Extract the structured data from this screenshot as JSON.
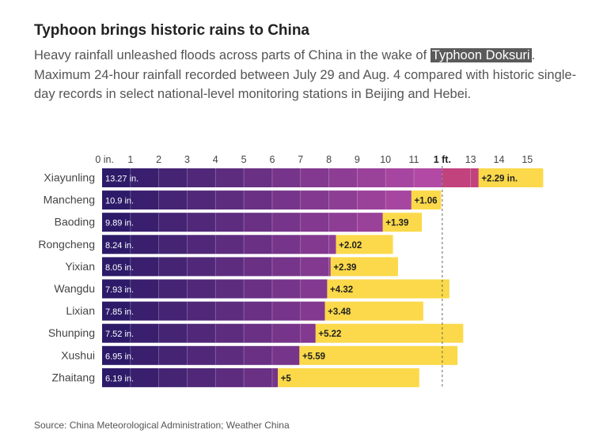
{
  "header": {
    "title": "Typhoon brings historic rains to China",
    "subtitle_before": "Heavy rainfall unleashed floods across parts of China in the wake of ",
    "subtitle_highlight": "Typhoon Doksuri",
    "subtitle_after": ". Maximum 24-hour rainfall recorded between July 29 and Aug. 4 compared with historic single-day records in select national-level monitoring stations in Beijing and Hebei."
  },
  "source": "Source: China Meteorological Administration; Weather China",
  "colors": {
    "purple_dark": "#2d1b69",
    "purple_light": "#b24aa5",
    "magenta": "#c2427e",
    "yellow": "#fbd94a",
    "reference_line": "#666666"
  },
  "chart_data": {
    "type": "bar",
    "orientation": "horizontal",
    "stacked": true,
    "xlim": [
      0,
      15
    ],
    "x_ticks": [
      {
        "value": 0,
        "label": "0 in."
      },
      {
        "value": 1,
        "label": "1"
      },
      {
        "value": 2,
        "label": "2"
      },
      {
        "value": 3,
        "label": "3"
      },
      {
        "value": 4,
        "label": "4"
      },
      {
        "value": 5,
        "label": "5"
      },
      {
        "value": 6,
        "label": "6"
      },
      {
        "value": 7,
        "label": "7"
      },
      {
        "value": 8,
        "label": "8"
      },
      {
        "value": 9,
        "label": "9"
      },
      {
        "value": 10,
        "label": "10"
      },
      {
        "value": 11,
        "label": "11"
      },
      {
        "value": 12,
        "label": "1 ft."
      },
      {
        "value": 13,
        "label": "13"
      },
      {
        "value": 14,
        "label": "14"
      },
      {
        "value": 15,
        "label": "15"
      }
    ],
    "reference_line": {
      "value": 12,
      "style": "dashed"
    },
    "categories": [
      "Xiayunling",
      "Mancheng",
      "Baoding",
      "Rongcheng",
      "Yixian",
      "Wangdu",
      "Lixian",
      "Shunping",
      "Xushui",
      "Zhaitang"
    ],
    "series": [
      {
        "values": [
          13.27,
          10.9,
          9.89,
          8.24,
          8.05,
          7.93,
          7.85,
          7.52,
          6.95,
          6.19
        ],
        "labels": [
          "13.27 in.",
          "10.9 in.",
          "9.89 in.",
          "8.24 in.",
          "8.05 in.",
          "7.93 in.",
          "7.85 in.",
          "7.52 in.",
          "6.95 in.",
          "6.19 in."
        ]
      },
      {
        "values": [
          2.29,
          1.06,
          1.39,
          2.02,
          2.39,
          4.32,
          3.48,
          5.22,
          5.59,
          5
        ],
        "labels": [
          "+2.29 in.",
          "+1.06",
          "+1.39",
          "+2.02",
          "+2.39",
          "+4.32",
          "+3.48",
          "+5.22",
          "+5.59",
          "+5"
        ]
      }
    ],
    "grid": false
  }
}
